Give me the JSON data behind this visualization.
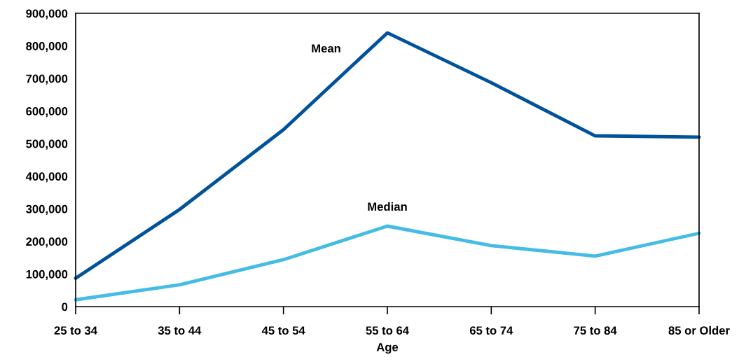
{
  "chart_data": {
    "type": "line",
    "xlabel": "Age",
    "categories": [
      "25 to 34",
      "35 to 44",
      "45 to 54",
      "55 to 64",
      "65 to 74",
      "75 to 84",
      "85 or Older"
    ],
    "series": [
      {
        "name": "Mean",
        "color": "#00529b",
        "values": [
          87000,
          298000,
          543000,
          840000,
          687000,
          524000,
          520000
        ]
      },
      {
        "name": "Median",
        "color": "#45bce5",
        "values": [
          21000,
          67000,
          144000,
          247000,
          187000,
          155000,
          225000
        ]
      }
    ],
    "ylim": [
      0,
      900000
    ],
    "yticks": [
      {
        "value": 0,
        "label": "0"
      },
      {
        "value": 100000,
        "label": "100,000"
      },
      {
        "value": 200000,
        "label": "200,000"
      },
      {
        "value": 300000,
        "label": "300,000"
      },
      {
        "value": 400000,
        "label": "400,000"
      },
      {
        "value": 500000,
        "label": "500,000"
      },
      {
        "value": 600000,
        "label": "600,000"
      },
      {
        "value": 700000,
        "label": "700,000"
      },
      {
        "value": 800000,
        "label": "800,000"
      },
      {
        "value": 900000,
        "label": "900,000"
      }
    ],
    "grid": false,
    "legend": false,
    "marker": "none",
    "line_style": "solid"
  }
}
